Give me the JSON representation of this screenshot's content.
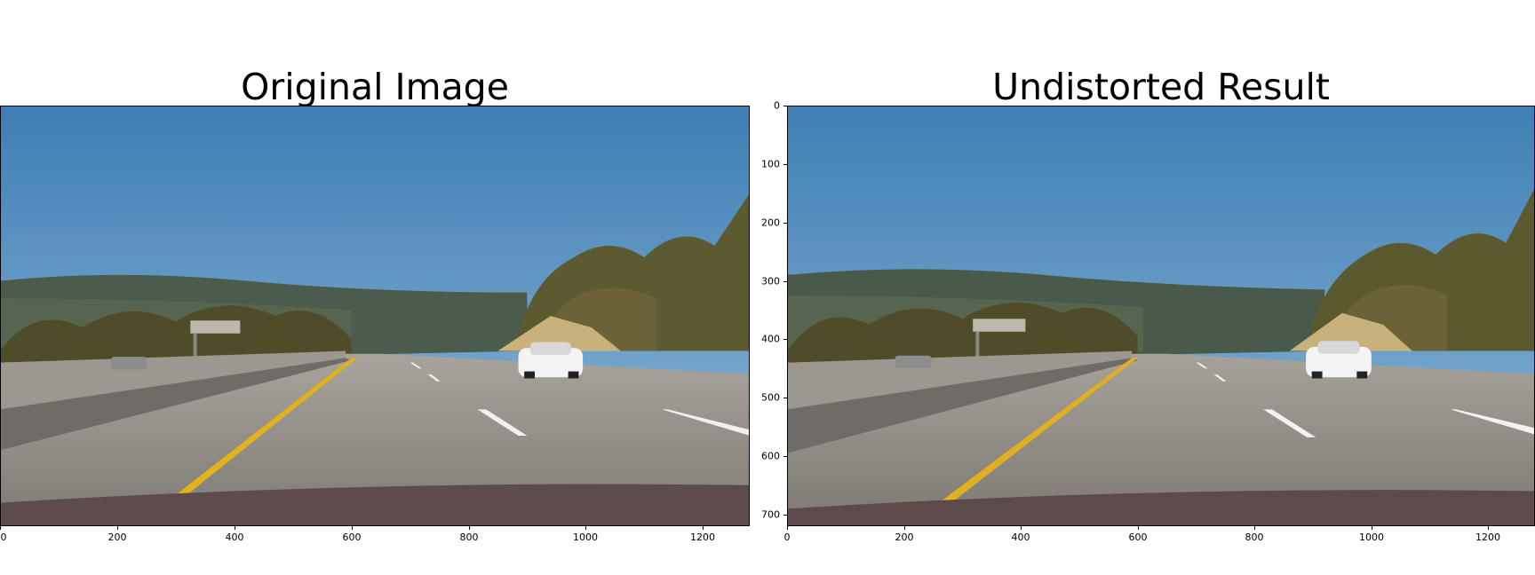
{
  "figure": {
    "panels": [
      {
        "title": "Original Image"
      },
      {
        "title": "Undistorted Result"
      }
    ],
    "x_ticks": [
      "0",
      "200",
      "400",
      "600",
      "800",
      "1000",
      "1200"
    ],
    "y_ticks": [
      "0",
      "100",
      "200",
      "300",
      "400",
      "500",
      "600",
      "700"
    ],
    "x_range": [
      0,
      1280
    ],
    "y_range": [
      0,
      720
    ],
    "colors": {
      "sky_top": "#3f7fb5",
      "sky_bottom": "#8fb8d6",
      "hills": "#4a5a4a",
      "road": "#9a958d",
      "lane_yellow": "#e0b020",
      "lane_white": "#f2f2f2",
      "car": "#f4f4f4",
      "trees": "#5b5a2e",
      "hood": "#5d4a4a"
    }
  }
}
